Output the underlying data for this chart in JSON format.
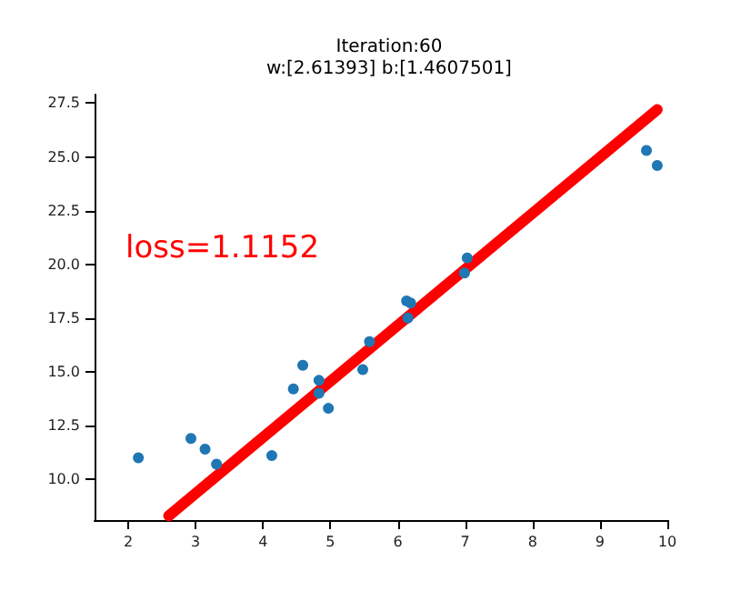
{
  "chart_data": {
    "type": "scatter",
    "title": "Iteration:60",
    "subtitle": "w:[2.61393] b:[1.4607501]",
    "annotations": [
      "loss=1.1152"
    ],
    "series": [
      {
        "type": "scatter",
        "color": "#1f77b4",
        "marker": "circle",
        "x": [
          2.15,
          2.93,
          3.14,
          3.31,
          4.13,
          4.45,
          4.59,
          4.83,
          4.83,
          4.97,
          5.48,
          5.58,
          6.13,
          6.19,
          6.15,
          6.99,
          7.03,
          9.69,
          9.85
        ],
        "values": [
          11.0,
          11.9,
          11.4,
          10.7,
          11.1,
          14.2,
          15.3,
          14.6,
          14.0,
          13.3,
          15.1,
          16.4,
          18.3,
          18.2,
          17.5,
          19.6,
          20.3,
          25.3,
          24.6
        ]
      },
      {
        "type": "line",
        "color": "#ff0000",
        "marker": "none",
        "line_style": "solid",
        "x": [
          2.6,
          9.85
        ],
        "values": [
          8.3,
          27.2
        ]
      }
    ],
    "xlim": [
      1.5,
      10
    ],
    "xticks": [
      2,
      3,
      4,
      5,
      6,
      7,
      8,
      9,
      10
    ],
    "ylim": [
      8.1,
      27.9
    ],
    "yticks": [
      {
        "value": 10,
        "label": "10.0"
      },
      {
        "value": 12.5,
        "label": "12.5"
      },
      {
        "value": 15,
        "label": "15.0"
      },
      {
        "value": 17.5,
        "label": "17.5"
      },
      {
        "value": 20,
        "label": "20.0"
      },
      {
        "value": 22.5,
        "label": "22.5"
      },
      {
        "value": 25,
        "label": "25.0"
      },
      {
        "value": 27.5,
        "label": "27.5"
      }
    ],
    "grid": false
  }
}
